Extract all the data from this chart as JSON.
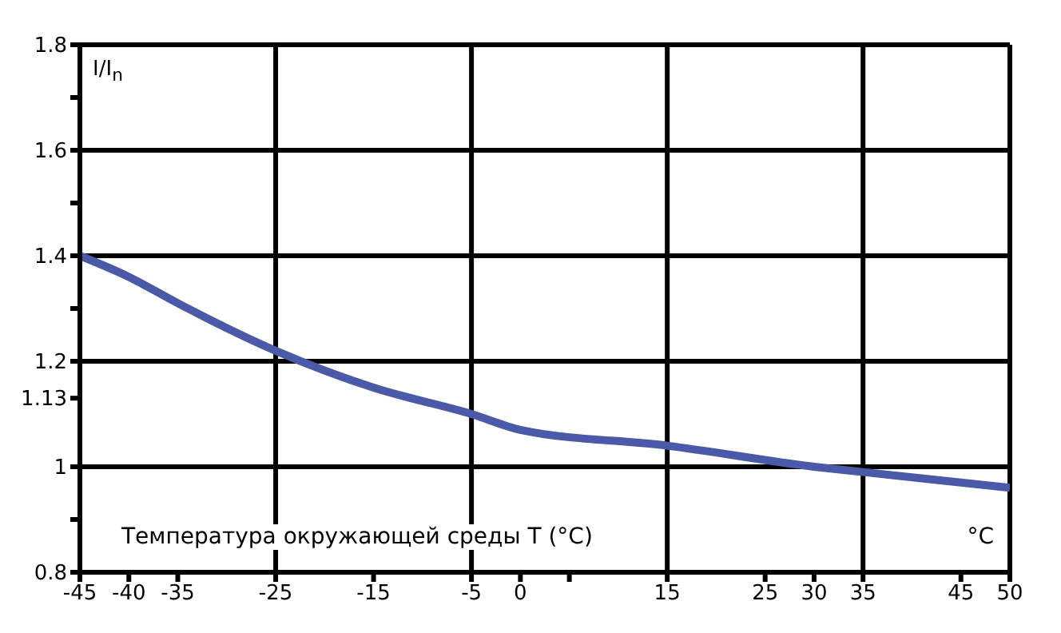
{
  "chart_data": {
    "type": "line",
    "xlabel": "Температура окружающей среды T (°C)",
    "ylabel": "I/I$_{n}$",
    "annotations": [
      "°C"
    ],
    "x": [
      -45,
      -40,
      -35,
      -25,
      -15,
      -5,
      0,
      15,
      30,
      35,
      50
    ],
    "series": [
      {
        "color": "#4a5aa8",
        "values": [
          1.4,
          1.36,
          1.31,
          1.22,
          1.15,
          1.1,
          1.07,
          1.04,
          1.0,
          0.99,
          0.96
        ]
      }
    ],
    "xlim": [
      -45,
      50
    ],
    "xticks": [
      -45,
      -40,
      -35,
      -25,
      -15,
      -5,
      0,
      {
        "value": 5,
        "label": null
      },
      15,
      25,
      30,
      35,
      45,
      50
    ],
    "ylim": [
      0.8,
      1.8
    ],
    "yticks": [
      0.8,
      {
        "value": 0.9,
        "label": null
      },
      1,
      1.13,
      1.2,
      {
        "value": 1.3,
        "label": null
      },
      1.4,
      {
        "value": 1.5,
        "label": null
      },
      1.6,
      {
        "value": 1.7,
        "label": null
      },
      1.8
    ],
    "ref_lines": [
      {
        "axis": "x",
        "value": -25,
        "color": "#000000"
      },
      {
        "axis": "x",
        "value": -5,
        "color": "#000000"
      },
      {
        "axis": "x",
        "value": 15,
        "color": "#000000"
      },
      {
        "axis": "x",
        "value": 35,
        "color": "#000000"
      },
      {
        "axis": "y",
        "value": 1,
        "color": "#000000"
      },
      {
        "axis": "y",
        "value": 1.2,
        "color": "#000000"
      },
      {
        "axis": "y",
        "value": 1.4,
        "color": "#000000"
      },
      {
        "axis": "y",
        "value": 1.6,
        "color": "#000000"
      }
    ],
    "grid": false,
    "legend": false,
    "marker": "none",
    "line_style": "solid"
  }
}
